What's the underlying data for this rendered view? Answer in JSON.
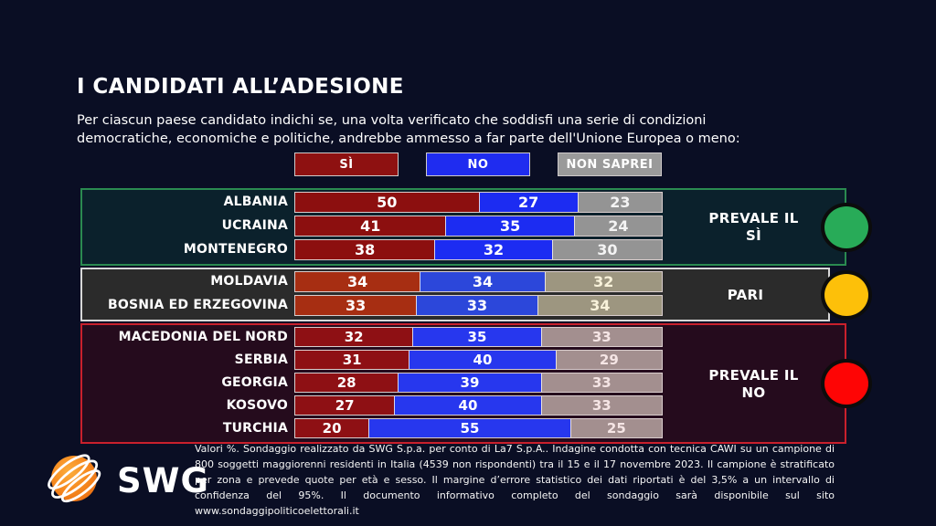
{
  "header": {
    "title": "I CANDIDATI ALL’ADESIONE",
    "question": "Per ciascun paese candidato indichi se, una volta verificato che soddisfi una serie di condizioni\ndemocratiche, economiche e politiche, andrebbe ammesso a far parte dell'Unione Europea o meno:"
  },
  "chart_data": {
    "type": "bar",
    "subtype": "horizontal-stacked",
    "unit": "Valori %",
    "xlim": [
      0,
      100
    ],
    "series_labels": [
      "SÌ",
      "NO",
      "NON SAPREI"
    ],
    "legend": [
      {
        "label": "SÌ",
        "color": "#8e1111"
      },
      {
        "label": "NO",
        "color": "#1f2cf0"
      },
      {
        "label": "NON SAPREI",
        "color": "#9a9a9a"
      }
    ],
    "categories": [
      "ALBANIA",
      "UCRAINA",
      "MONTENEGRO",
      "MOLDAVIA",
      "BOSNIA ED ERZEGOVINA",
      "MACEDONIA DEL NORD",
      "SERBIA",
      "GEORGIA",
      "KOSOVO",
      "TURCHIA"
    ],
    "groups": [
      {
        "id": "prevale-il-si",
        "label": "PREVALE IL\nSÌ",
        "indicator": "green",
        "indicator_color": "#28ab58",
        "box_bg": "#0b212c",
        "box_border": "#2a8a50",
        "bar_colors": [
          "#8c0f0f",
          "#1c2cf2",
          "#949494"
        ],
        "ns_value_color": "#f4f4f4",
        "rows": [
          {
            "country": "ALBANIA",
            "values": [
              50,
              27,
              23
            ]
          },
          {
            "country": "UCRAINA",
            "values": [
              41,
              35,
              24
            ]
          },
          {
            "country": "MONTENEGRO",
            "values": [
              38,
              32,
              30
            ]
          }
        ]
      },
      {
        "id": "pari",
        "label": "PARI",
        "indicator": "yellow",
        "indicator_color": "#fdc009",
        "box_bg": "#2b2b2b",
        "box_border": "#d8d8d8",
        "bar_colors": [
          "#a72e12",
          "#2c47da",
          "#9d9680"
        ],
        "ns_value_color": "#f8f2da",
        "rows": [
          {
            "country": "MOLDAVIA",
            "values": [
              34,
              34,
              32
            ]
          },
          {
            "country": "BOSNIA ED ERZEGOVINA",
            "values": [
              33,
              33,
              34
            ]
          }
        ]
      },
      {
        "id": "prevale-il-no",
        "label": "PREVALE IL\nNO",
        "indicator": "red",
        "indicator_color": "#fe0505",
        "box_bg": "#250b1d",
        "box_border": "#c9202c",
        "bar_colors": [
          "#8e1014",
          "#2737ee",
          "#a38f8f"
        ],
        "ns_value_color": "#f5e5e5",
        "rows": [
          {
            "country": "MACEDONIA DEL NORD",
            "values": [
              32,
              35,
              33
            ]
          },
          {
            "country": "SERBIA",
            "values": [
              31,
              40,
              29
            ]
          },
          {
            "country": "GEORGIA",
            "values": [
              28,
              39,
              33
            ]
          },
          {
            "country": "KOSOVO",
            "values": [
              27,
              40,
              33
            ]
          },
          {
            "country": "TURCHIA",
            "values": [
              20,
              55,
              25
            ]
          }
        ]
      }
    ]
  },
  "branding": {
    "logo_text": "SWG"
  },
  "footer": {
    "note": "Valori %. Sondaggio realizzato da SWG S.p.a. per conto di La7 S.p.A.. Indagine condotta con tecnica CAWI su un campione di 800 soggetti maggiorenni residenti in Italia (4539 non rispondenti) tra il 15 e il 17 novembre 2023. Il campione è stratificato per zona e prevede quote per età e sesso. Il margine d’errore statistico dei dati riportati è del 3,5% a un intervallo di confidenza del 95%. Il documento informativo completo del sondaggio sarà disponibile sul sito www.sondaggipoliticoelettorali.it"
  },
  "colors": {
    "background": "#0a0e24",
    "text": "#ffffff"
  }
}
